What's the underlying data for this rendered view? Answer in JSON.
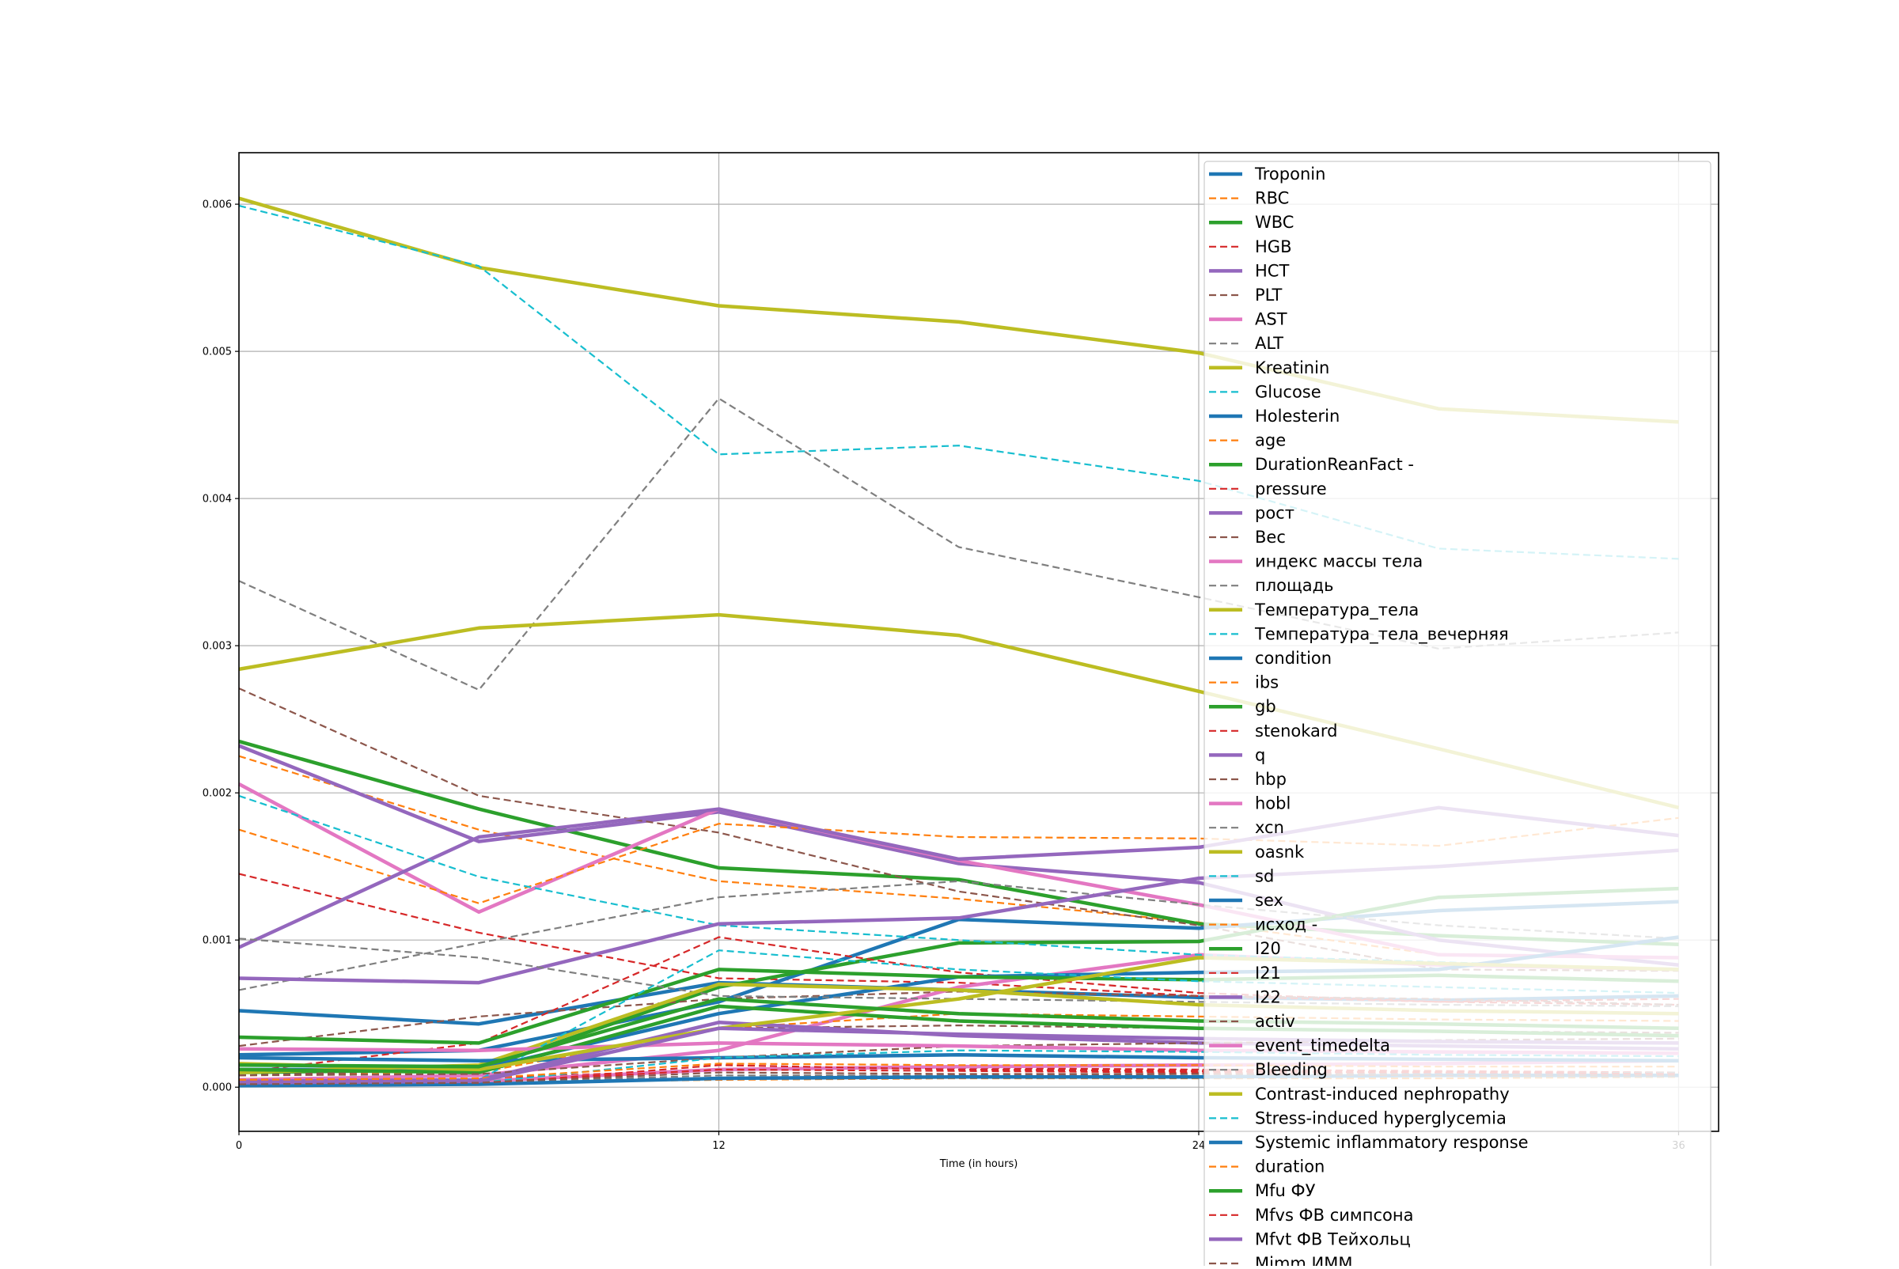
{
  "chart_data": {
    "type": "line",
    "title": "",
    "xlabel": "Time (in hours)",
    "ylabel": "",
    "xlim": [
      0,
      37
    ],
    "ylim": [
      -0.0003,
      0.00635
    ],
    "xticks": [
      0,
      12,
      24,
      36
    ],
    "xtick_labels": [
      "0",
      "12",
      "24",
      "36"
    ],
    "yticks": [
      0.0,
      0.001,
      0.002,
      0.003,
      0.004,
      0.005,
      0.006
    ],
    "ytick_labels": [
      "0.000",
      "0.001",
      "0.002",
      "0.003",
      "0.004",
      "0.005",
      "0.006"
    ],
    "grid": true,
    "legend_position": "right, overlapping plot",
    "x": [
      0,
      6,
      12,
      18,
      24,
      30,
      36
    ],
    "series": [
      {
        "name": "Troponin",
        "style": "solid",
        "color": "#1f77b4",
        "values": [
          0.00052,
          0.00043,
          0.00071,
          0.00066,
          0.00061,
          0.00059,
          0.00062
        ]
      },
      {
        "name": "RBC",
        "style": "dashed",
        "color": "#ff7f0e",
        "values": [
          0.00225,
          0.00175,
          0.0014,
          0.00128,
          0.00112,
          0.0009,
          0.00088
        ]
      },
      {
        "name": "WBC",
        "style": "solid",
        "color": "#2ca02c",
        "values": [
          0.00235,
          0.00189,
          0.00149,
          0.00141,
          0.00111,
          0.00103,
          0.00097
        ]
      },
      {
        "name": "HGB",
        "style": "dashed",
        "color": "#d62728",
        "values": [
          0.00145,
          0.00105,
          0.00074,
          0.00071,
          0.00062,
          0.00058,
          0.00056
        ]
      },
      {
        "name": "HCT",
        "style": "solid",
        "color": "#9467bd",
        "values": [
          0.00232,
          0.00167,
          0.00187,
          0.00152,
          0.00139,
          0.001,
          0.00083
        ]
      },
      {
        "name": "PLT",
        "style": "dashed",
        "color": "#8c564b",
        "values": [
          0.00271,
          0.00198,
          0.00173,
          0.00133,
          0.0011,
          0.0008,
          0.00079
        ]
      },
      {
        "name": "AST",
        "style": "solid",
        "color": "#e377c2",
        "values": [
          0.00206,
          0.00119,
          0.00189,
          0.00154,
          0.00124,
          0.0009,
          0.00088
        ]
      },
      {
        "name": "ALT",
        "style": "dashed",
        "color": "#7f7f7f",
        "values": [
          0.00344,
          0.0027,
          0.00468,
          0.00367,
          0.00333,
          0.00298,
          0.00309
        ]
      },
      {
        "name": "Kreatinin",
        "style": "solid",
        "color": "#bcbd22",
        "values": [
          0.00604,
          0.00557,
          0.00531,
          0.0052,
          0.00499,
          0.00461,
          0.00452
        ]
      },
      {
        "name": "Glucose",
        "style": "dashed",
        "color": "#17becf",
        "values": [
          0.00599,
          0.00558,
          0.0043,
          0.00436,
          0.00412,
          0.00366,
          0.00359
        ]
      },
      {
        "name": "Holesterin",
        "style": "solid",
        "color": "#1f77b4",
        "values": [
          0.00022,
          0.00025,
          0.00058,
          0.00114,
          0.00108,
          0.0012,
          0.00126
        ]
      },
      {
        "name": "age",
        "style": "dashed",
        "color": "#ff7f0e",
        "values": [
          0.00175,
          0.00125,
          0.00179,
          0.0017,
          0.00169,
          0.00164,
          0.00183
        ]
      },
      {
        "name": "DurationReanFact -",
        "style": "solid",
        "color": "#2ca02c",
        "values": [
          0.0001,
          0.00012,
          0.00068,
          0.00098,
          0.00099,
          0.00129,
          0.00135
        ]
      },
      {
        "name": "pressure",
        "style": "dashed",
        "color": "#d62728",
        "values": [
          0.0001,
          0.0003,
          0.00102,
          0.00078,
          0.00064,
          0.00058,
          0.0006
        ]
      },
      {
        "name": "рост",
        "style": "solid",
        "color": "#9467bd",
        "values": [
          0.00095,
          0.0017,
          0.00189,
          0.00155,
          0.00163,
          0.0019,
          0.00171
        ]
      },
      {
        "name": " Вес",
        "style": "dashed",
        "color": "#8c564b",
        "values": [
          0.00028,
          0.00048,
          0.0006,
          0.00065,
          0.00062,
          0.0006,
          0.00056
        ]
      },
      {
        "name": "индекс массы тела",
        "style": "solid",
        "color": "#e377c2",
        "values": [
          5e-05,
          8e-05,
          0.00025,
          0.00068,
          0.0009,
          0.00083,
          0.0008
        ]
      },
      {
        "name": "площадь",
        "style": "dashed",
        "color": "#7f7f7f",
        "values": [
          0.00066,
          0.00098,
          0.00129,
          0.0014,
          0.00124,
          0.0011,
          0.00101
        ]
      },
      {
        "name": "Температура_тела",
        "style": "solid",
        "color": "#bcbd22",
        "values": [
          0.00284,
          0.00312,
          0.00321,
          0.00307,
          0.00269,
          0.0023,
          0.0019
        ]
      },
      {
        "name": "Температура_тела_вечерняя",
        "style": "dashed",
        "color": "#17becf",
        "values": [
          0.00198,
          0.00143,
          0.0011,
          0.001,
          0.0009,
          0.00085,
          0.0008
        ]
      },
      {
        "name": "condition",
        "style": "solid",
        "color": "#1f77b4",
        "values": [
          0.00012,
          0.00012,
          0.0005,
          0.00075,
          0.00078,
          0.0008,
          0.00102
        ]
      },
      {
        "name": "ibs",
        "style": "dashed",
        "color": "#ff7f0e",
        "values": [
          8e-05,
          0.0001,
          0.0004,
          0.0005,
          0.00048,
          0.00046,
          0.00045
        ]
      },
      {
        "name": "gb",
        "style": "solid",
        "color": "#2ca02c",
        "values": [
          0.00034,
          0.0003,
          0.0008,
          0.00075,
          0.00073,
          0.00076,
          0.00072
        ]
      },
      {
        "name": "stenokard",
        "style": "dashed",
        "color": "#d62728",
        "values": [
          5e-05,
          6e-05,
          0.00012,
          0.00013,
          0.00012,
          0.00011,
          0.0001
        ]
      },
      {
        "name": "q",
        "style": "solid",
        "color": "#9467bd",
        "values": [
          0.00074,
          0.00071,
          0.00111,
          0.00115,
          0.00142,
          0.0015,
          0.00161
        ]
      },
      {
        "name": "hbp",
        "style": "dashed",
        "color": "#8c564b",
        "values": [
          8e-05,
          0.00012,
          0.0004,
          0.00042,
          0.0004,
          0.00038,
          0.00037
        ]
      },
      {
        "name": "hobl",
        "style": "solid",
        "color": "#e377c2",
        "values": [
          3e-05,
          4e-05,
          0.00012,
          0.00014,
          0.00015,
          0.00016,
          0.00018
        ]
      },
      {
        "name": "xcn",
        "style": "dashed",
        "color": "#7f7f7f",
        "values": [
          0.00101,
          0.00088,
          0.00062,
          0.0006,
          0.00058,
          0.00056,
          0.00055
        ]
      },
      {
        "name": "oasnk",
        "style": "solid",
        "color": "#bcbd22",
        "values": [
          0.0001,
          0.00015,
          0.0007,
          0.00066,
          0.00056,
          0.00052,
          0.0005
        ]
      },
      {
        "name": "sd",
        "style": "dashed",
        "color": "#17becf",
        "values": [
          3e-05,
          5e-05,
          0.00093,
          0.0008,
          0.00072,
          0.00068,
          0.00064
        ]
      },
      {
        "name": "sex",
        "style": "solid",
        "color": "#1f77b4",
        "values": [
          0.0002,
          0.00018,
          0.0002,
          0.00022,
          0.0002,
          0.00019,
          0.00018
        ]
      },
      {
        "name": "исход  -",
        "style": "dashed",
        "color": "#ff7f0e",
        "values": [
          3e-05,
          3e-05,
          5e-05,
          6e-05,
          6e-05,
          6e-05,
          7e-05
        ]
      },
      {
        "name": "I20",
        "style": "solid",
        "color": "#2ca02c",
        "values": [
          0.00012,
          0.0001,
          0.00055,
          0.00045,
          0.0004,
          0.00038,
          0.00035
        ]
      },
      {
        "name": "I21",
        "style": "dashed",
        "color": "#d62728",
        "values": [
          2e-05,
          2e-05,
          0.00015,
          0.00012,
          0.00011,
          0.0001,
          0.0001
        ]
      },
      {
        "name": "I22",
        "style": "solid",
        "color": "#9467bd",
        "values": [
          4e-05,
          5e-05,
          0.00044,
          0.00035,
          0.0003,
          0.00028,
          0.00026
        ]
      },
      {
        "name": "activ",
        "style": "dashed",
        "color": "#8c564b",
        "values": [
          8e-05,
          9e-05,
          0.0002,
          0.00028,
          0.0003,
          0.00032,
          0.00033
        ]
      },
      {
        "name": "event_timedelta",
        "style": "solid",
        "color": "#e377c2",
        "values": [
          0.00026,
          0.00025,
          0.0003,
          0.00028,
          0.00025,
          0.00024,
          0.00023
        ]
      },
      {
        "name": "Bleeding",
        "style": "dashed",
        "color": "#7f7f7f",
        "values": [
          2e-05,
          3e-05,
          8e-05,
          8e-05,
          9e-05,
          9e-05,
          0.0001
        ]
      },
      {
        "name": "Contrast-induced nephropathy",
        "style": "solid",
        "color": "#bcbd22",
        "values": [
          0.00016,
          0.00012,
          0.0004,
          0.0006,
          0.00088,
          0.00084,
          0.0008
        ]
      },
      {
        "name": "Stress-induced hyperglycemia",
        "style": "dashed",
        "color": "#17becf",
        "values": [
          2e-05,
          3e-05,
          0.0002,
          0.00025,
          0.00024,
          0.00022,
          0.00021
        ]
      },
      {
        "name": "Systemic inflammatory response",
        "style": "solid",
        "color": "#1f77b4",
        "values": [
          1e-05,
          2e-05,
          6e-05,
          7e-05,
          7e-05,
          8e-05,
          8e-05
        ]
      },
      {
        "name": "duration",
        "style": "dashed",
        "color": "#ff7f0e",
        "values": [
          5e-05,
          6e-05,
          0.00016,
          0.00015,
          0.00015,
          0.00014,
          0.00014
        ]
      },
      {
        "name": "Mfu ФУ",
        "style": "solid",
        "color": "#2ca02c",
        "values": [
          0.00015,
          0.00014,
          0.0006,
          0.0005,
          0.00045,
          0.00043,
          0.0004
        ]
      },
      {
        "name": "Mfvs ФВ симпсона",
        "style": "dashed",
        "color": "#d62728",
        "values": [
          3e-05,
          3e-05,
          0.00012,
          0.00011,
          0.0001,
          0.0001,
          9e-05
        ]
      },
      {
        "name": "Mfvt ФВ Тейхольц",
        "style": "solid",
        "color": "#9467bd",
        "values": [
          3e-05,
          4e-05,
          0.0004,
          0.00036,
          0.00033,
          0.00031,
          0.0003
        ]
      },
      {
        "name": "Mimm ИММ",
        "style": "dashed",
        "color": "#8c564b",
        "values": [
          2e-05,
          3e-05,
          0.0001,
          9e-05,
          9e-05,
          8e-05,
          8e-05
        ]
      }
    ]
  }
}
